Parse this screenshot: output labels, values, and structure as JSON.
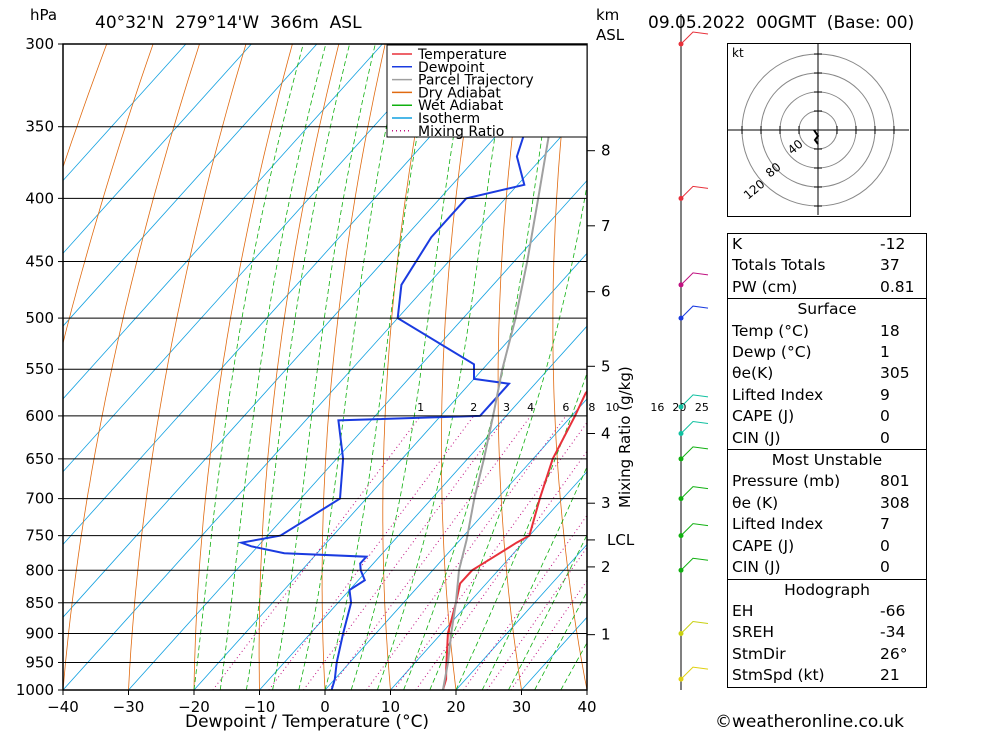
{
  "header": {
    "location": "40°32'N  279°14'W  366m  ASL",
    "datetime": "09.05.2022  00GMT  (Base: 00)",
    "hpa_label": "hPa",
    "km_label": "km",
    "asl_label": "ASL"
  },
  "legend": [
    {
      "name": "Temperature",
      "color": "#e8303a",
      "style": "solid"
    },
    {
      "name": "Dewpoint",
      "color": "#1a3be0",
      "style": "solid"
    },
    {
      "name": "Parcel Trajectory",
      "color": "#a0a0a0",
      "style": "solid"
    },
    {
      "name": "Dry Adiabat",
      "color": "#e06a10",
      "style": "solid"
    },
    {
      "name": "Wet Adiabat",
      "color": "#10b010",
      "style": "solid"
    },
    {
      "name": "Isotherm",
      "color": "#10a0e0",
      "style": "solid"
    },
    {
      "name": "Mixing Ratio",
      "color": "#c01080",
      "style": "dotted"
    }
  ],
  "chart_data": {
    "type": "line",
    "subtype": "skew-T log-P sounding",
    "xlabel": "Dewpoint / Temperature (°C)",
    "ylabel": "hPa",
    "xlim": [
      -40,
      40
    ],
    "ylim": [
      1000,
      300
    ],
    "x_ticks": [
      "−40",
      "−30",
      "−20",
      "−10",
      "0",
      "10",
      "20",
      "30",
      "40"
    ],
    "pressure_levels": [
      300,
      350,
      400,
      450,
      500,
      550,
      600,
      650,
      700,
      750,
      800,
      850,
      900,
      950,
      1000
    ],
    "height_km_ticks": [
      {
        "label": "8",
        "p": 366
      },
      {
        "label": "7",
        "p": 421
      },
      {
        "label": "6",
        "p": 476
      },
      {
        "label": "5",
        "p": 547
      },
      {
        "label": "4",
        "p": 620
      },
      {
        "label": "3",
        "p": 706
      },
      {
        "label": "LCL",
        "p": 756
      },
      {
        "label": "2",
        "p": 795
      },
      {
        "label": "1",
        "p": 902
      }
    ],
    "mixing_ratio_label": "Mixing Ratio (g/kg)",
    "mixing_ratio_values": [
      "1",
      "2",
      "3",
      "4",
      "6",
      "8",
      "10",
      "16",
      "20",
      "25"
    ],
    "series": [
      {
        "name": "Temperature",
        "points": [
          [
            1000,
            18
          ],
          [
            980,
            17
          ],
          [
            960,
            15.5
          ],
          [
            900,
            11
          ],
          [
            850,
            8
          ],
          [
            820,
            6
          ],
          [
            800,
            6
          ],
          [
            780,
            7.5
          ],
          [
            760,
            9
          ],
          [
            750,
            10
          ],
          [
            700,
            6.5
          ],
          [
            650,
            3
          ],
          [
            600,
            0.5
          ],
          [
            575,
            -1
          ],
          [
            560,
            -1
          ],
          [
            500,
            -4
          ],
          [
            470,
            -4.5
          ],
          [
            450,
            -5
          ],
          [
            400,
            -14
          ],
          [
            370,
            -18.5
          ],
          [
            350,
            -22.5
          ],
          [
            340,
            -26
          ],
          [
            320,
            -26
          ],
          [
            300,
            -31
          ]
        ]
      },
      {
        "name": "Dewpoint",
        "points": [
          [
            1000,
            1
          ],
          [
            980,
            0
          ],
          [
            950,
            -2
          ],
          [
            900,
            -5
          ],
          [
            850,
            -8
          ],
          [
            830,
            -10
          ],
          [
            815,
            -9
          ],
          [
            800,
            -11
          ],
          [
            790,
            -12
          ],
          [
            780,
            -12
          ],
          [
            775,
            -25
          ],
          [
            765,
            -31
          ],
          [
            760,
            -33
          ],
          [
            750,
            -28
          ],
          [
            700,
            -24
          ],
          [
            650,
            -29
          ],
          [
            605,
            -35
          ],
          [
            600,
            -14
          ],
          [
            590,
            -14
          ],
          [
            565,
            -14
          ],
          [
            560,
            -20
          ],
          [
            545,
            -22
          ],
          [
            500,
            -40
          ],
          [
            470,
            -44
          ],
          [
            430,
            -46
          ],
          [
            400,
            -46
          ],
          [
            390,
            -39
          ],
          [
            370,
            -44
          ],
          [
            340,
            -48
          ],
          [
            320,
            -49
          ],
          [
            300,
            -47
          ]
        ]
      },
      {
        "name": "Parcel Trajectory",
        "points": [
          [
            1000,
            18
          ],
          [
            950,
            15
          ],
          [
            900,
            11.5
          ],
          [
            850,
            8
          ],
          [
            800,
            4
          ],
          [
            756,
            1
          ],
          [
            700,
            -3.5
          ],
          [
            650,
            -7.5
          ],
          [
            600,
            -12
          ],
          [
            550,
            -17
          ],
          [
            500,
            -22
          ],
          [
            450,
            -28
          ],
          [
            400,
            -35
          ],
          [
            350,
            -43
          ],
          [
            300,
            -52
          ]
        ]
      }
    ]
  },
  "indices": {
    "top": [
      {
        "label": "K",
        "value": "-12"
      },
      {
        "label": "Totals Totals",
        "value": "37"
      },
      {
        "label": "PW (cm)",
        "value": "0.81"
      }
    ],
    "surface": {
      "title": "Surface",
      "rows": [
        {
          "label": "Temp (°C)",
          "value": "18"
        },
        {
          "label": "Dewp (°C)",
          "value": "1"
        },
        {
          "label": "θe(K)",
          "value": "305"
        },
        {
          "label": "Lifted Index",
          "value": "9"
        },
        {
          "label": "CAPE (J)",
          "value": "0"
        },
        {
          "label": "CIN (J)",
          "value": "0"
        }
      ]
    },
    "most_unstable": {
      "title": "Most Unstable",
      "rows": [
        {
          "label": "Pressure (mb)",
          "value": "801"
        },
        {
          "label": "θe (K)",
          "value": "308"
        },
        {
          "label": "Lifted Index",
          "value": "7"
        },
        {
          "label": "CAPE (J)",
          "value": "0"
        },
        {
          "label": "CIN (J)",
          "value": "0"
        }
      ]
    },
    "hodograph": {
      "title": "Hodograph",
      "rows": [
        {
          "label": "EH",
          "value": "-66"
        },
        {
          "label": "SREH",
          "value": "-34"
        },
        {
          "label": "StmDir",
          "value": "26°"
        },
        {
          "label": "StmSpd (kt)",
          "value": "21"
        }
      ]
    }
  },
  "hodograph_plot": {
    "unit_label": "kt",
    "ring_labels": [
      "40",
      "80",
      "120"
    ]
  },
  "footer": {
    "copyright": "©weatheronline.co.uk"
  }
}
